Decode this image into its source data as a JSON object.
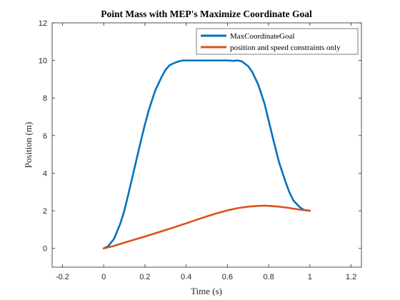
{
  "chart_data": {
    "type": "line",
    "title": "Point Mass with MEP's Maximize Coordinate Goal",
    "xlabel": "Time (s)",
    "ylabel": "Position (m)",
    "xlim": [
      -0.25,
      1.25
    ],
    "ylim": [
      -1,
      12
    ],
    "xticks": [
      -0.2,
      0,
      0.2,
      0.4,
      0.6,
      0.8,
      1,
      1.2
    ],
    "xtick_labels": [
      "-0.2",
      "0",
      "0.2",
      "0.4",
      "0.6",
      "0.8",
      "1",
      "1.2"
    ],
    "yticks": [
      0,
      2,
      4,
      6,
      8,
      10,
      12
    ],
    "ytick_labels": [
      "0",
      "2",
      "4",
      "6",
      "8",
      "10",
      "12"
    ],
    "grid": false,
    "legend_position": "top-right",
    "series": [
      {
        "name": "MaxCoordinateGoal",
        "color": "#0072BD",
        "x": [
          0,
          0.02,
          0.05,
          0.08,
          0.1,
          0.12,
          0.15,
          0.18,
          0.2,
          0.22,
          0.25,
          0.28,
          0.3,
          0.32,
          0.35,
          0.37,
          0.38,
          0.39,
          0.4,
          0.45,
          0.5,
          0.55,
          0.6,
          0.63,
          0.65,
          0.67,
          0.7,
          0.72,
          0.75,
          0.78,
          0.8,
          0.82,
          0.85,
          0.88,
          0.9,
          0.92,
          0.95,
          0.97,
          1.0
        ],
        "y": [
          0,
          0.1,
          0.5,
          1.3,
          2.0,
          2.9,
          4.3,
          5.7,
          6.6,
          7.4,
          8.4,
          9.1,
          9.5,
          9.75,
          9.9,
          9.97,
          9.99,
          10.0,
          10.0,
          10.0,
          10.0,
          10.0,
          10.0,
          9.98,
          10.0,
          9.95,
          9.7,
          9.4,
          8.7,
          7.7,
          6.8,
          5.9,
          4.6,
          3.6,
          3.0,
          2.55,
          2.2,
          2.05,
          2.0
        ]
      },
      {
        "name": "position and speed constraints only",
        "color": "#D95319",
        "x": [
          0,
          0.05,
          0.1,
          0.15,
          0.2,
          0.25,
          0.3,
          0.35,
          0.4,
          0.45,
          0.5,
          0.55,
          0.6,
          0.65,
          0.7,
          0.75,
          0.78,
          0.8,
          0.85,
          0.9,
          0.95,
          1.0
        ],
        "y": [
          0,
          0.13,
          0.3,
          0.47,
          0.63,
          0.8,
          0.97,
          1.15,
          1.33,
          1.52,
          1.7,
          1.87,
          2.02,
          2.14,
          2.22,
          2.26,
          2.27,
          2.26,
          2.22,
          2.15,
          2.06,
          2.0
        ]
      }
    ]
  }
}
